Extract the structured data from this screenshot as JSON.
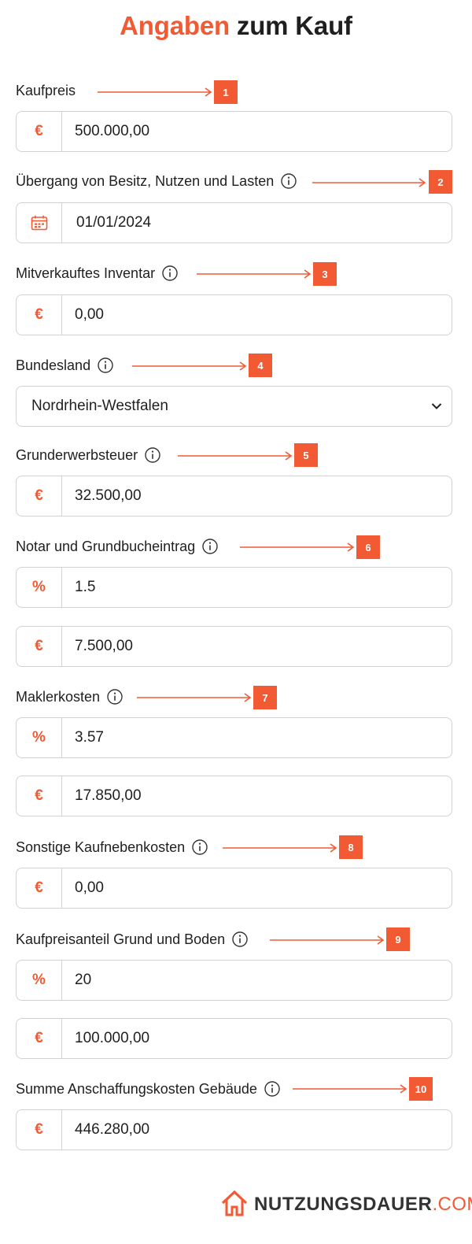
{
  "title": {
    "accent": "Angaben",
    "rest": "zum Kauf"
  },
  "fields": [
    {
      "label": "Kaufpreis",
      "badge": "1",
      "inputs": [
        {
          "prefix": "€",
          "value": "500.000,00"
        }
      ]
    },
    {
      "label": "Übergang von Besitz, Nutzen und Lasten",
      "badge": "2",
      "inputs": [
        {
          "prefix_icon": "calendar-icon",
          "value": "01/01/2024"
        }
      ]
    },
    {
      "label": "Mitverkauftes Inventar",
      "badge": "3",
      "inputs": [
        {
          "prefix": "€",
          "value": "0,00"
        }
      ]
    },
    {
      "label": "Bundesland",
      "badge": "4",
      "select": {
        "value": "Nordrhein-Westfalen",
        "icon": "chevron-down-icon"
      }
    },
    {
      "label": "Grunderwerbsteuer",
      "badge": "5",
      "inputs": [
        {
          "prefix": "€",
          "value": "32.500,00"
        }
      ]
    },
    {
      "label": "Notar und Grundbucheintrag",
      "badge": "6",
      "inputs": [
        {
          "prefix": "%",
          "value": "1.5"
        },
        {
          "prefix": "€",
          "value": "7.500,00"
        }
      ]
    },
    {
      "label": "Maklerkosten",
      "badge": "7",
      "inputs": [
        {
          "prefix": "%",
          "value": "3.57"
        },
        {
          "prefix": "€",
          "value": "17.850,00"
        }
      ]
    },
    {
      "label": "Sonstige Kaufnebenkosten",
      "badge": "8",
      "inputs": [
        {
          "prefix": "€",
          "value": "0,00"
        }
      ]
    },
    {
      "label": "Kaufpreisanteil Grund und Boden",
      "badge": "9",
      "inputs": [
        {
          "prefix": "%",
          "value": "20"
        },
        {
          "prefix": "€",
          "value": "100.000,00"
        }
      ]
    },
    {
      "label": "Summe Anschaffungskosten Gebäude",
      "badge": "10",
      "inputs": [
        {
          "prefix": "€",
          "value": "446.280,00"
        }
      ]
    }
  ],
  "logo": {
    "brand": "NUTZUNGSDAUER",
    "tld": ".COM",
    "icon": "house-logo-icon"
  },
  "colors": {
    "accent": "#f25a33",
    "border": "#d2d2d2",
    "text": "#1f1f1f"
  }
}
